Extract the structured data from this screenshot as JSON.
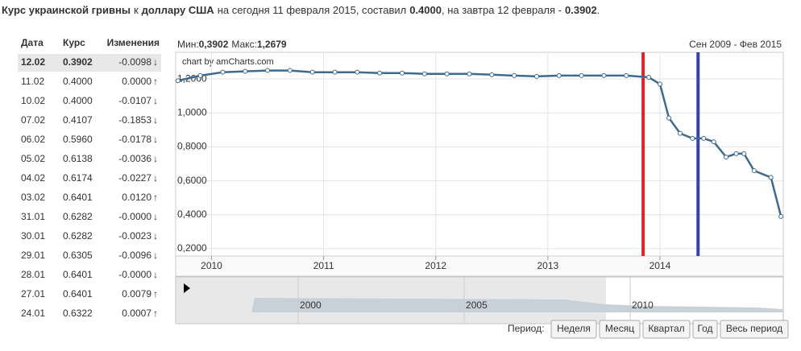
{
  "header": {
    "parts": [
      {
        "text": "Курс украинской гривны",
        "bold": true
      },
      {
        "text": "к",
        "bold": false
      },
      {
        "text": "доллару США",
        "bold": true
      },
      {
        "text": "на сегодня 11 февраля 2015, составил",
        "bold": false
      },
      {
        "text": "0.4000",
        "bold": true
      },
      {
        "text": ", на завтра 12 февраля -",
        "bold": false
      },
      {
        "text": "0.3902",
        "bold": true
      },
      {
        "text": ".",
        "bold": false
      }
    ]
  },
  "table": {
    "columns": [
      "Дата",
      "Курс",
      "Изменения"
    ],
    "rows": [
      [
        "12.02",
        "0.3902",
        "-0.0098",
        "↓"
      ],
      [
        "11.02",
        "0.4000",
        "0.0000",
        "↑"
      ],
      [
        "10.02",
        "0.4000",
        "-0.0107",
        "↓"
      ],
      [
        "07.02",
        "0.4107",
        "-0.1853",
        "↓"
      ],
      [
        "06.02",
        "0.5960",
        "-0.0178",
        "↓"
      ],
      [
        "05.02",
        "0.6138",
        "-0.0036",
        "↓"
      ],
      [
        "04.02",
        "0.6174",
        "-0.0227",
        "↓"
      ],
      [
        "03.02",
        "0.6401",
        "0.0120",
        "↑"
      ],
      [
        "31.01",
        "0.6282",
        "-0.0000",
        "↓"
      ],
      [
        "30.01",
        "0.6282",
        "-0.0023",
        "↓"
      ],
      [
        "29.01",
        "0.6305",
        "-0.0096",
        "↓"
      ],
      [
        "28.01",
        "0.6401",
        "-0.0000",
        "↓"
      ],
      [
        "27.01",
        "0.6401",
        "0.0079",
        "↑"
      ],
      [
        "24.01",
        "0.6322",
        "0.0007",
        "↑"
      ]
    ]
  },
  "chart_data": {
    "type": "line",
    "min_label": "Мин:",
    "min": "0,3902",
    "max_label": "Макс:",
    "max": "1,2679",
    "range": "Сен 2009 - Фев 2015",
    "credit": "chart by amCharts.com",
    "color": "#3e6a8e",
    "x": [
      2009.7,
      2009.9,
      2010.1,
      2010.3,
      2010.5,
      2010.7,
      2010.9,
      2011.1,
      2011.3,
      2011.5,
      2011.7,
      2011.9,
      2012.1,
      2012.3,
      2012.5,
      2012.7,
      2012.9,
      2013.1,
      2013.3,
      2013.5,
      2013.7,
      2013.9,
      2014.0,
      2014.08,
      2014.18,
      2014.29,
      2014.39,
      2014.48,
      2014.59,
      2014.68,
      2014.75,
      2014.84,
      2014.99,
      2015.08
    ],
    "values": [
      1.19,
      1.22,
      1.24,
      1.245,
      1.25,
      1.25,
      1.24,
      1.24,
      1.24,
      1.235,
      1.235,
      1.23,
      1.23,
      1.23,
      1.225,
      1.22,
      1.215,
      1.22,
      1.22,
      1.22,
      1.22,
      1.21,
      1.17,
      0.97,
      0.88,
      0.85,
      0.85,
      0.83,
      0.74,
      0.76,
      0.76,
      0.66,
      0.62,
      0.39
    ],
    "xlim": [
      2009.68,
      2015.1
    ],
    "xticks": [
      2010,
      2011,
      2012,
      2013,
      2014
    ],
    "ylim": [
      0.157,
      1.357
    ],
    "yticks": [
      {
        "value": 0.2,
        "label": "0,2000"
      },
      {
        "value": 0.4,
        "label": "0,4000"
      },
      {
        "value": 0.6,
        "label": "0,6000"
      },
      {
        "value": 0.8,
        "label": "0,8000"
      },
      {
        "value": 1.0,
        "label": "1,0000"
      },
      {
        "value": 1.2,
        "label": "1,2000"
      }
    ],
    "grid": true,
    "markers": [
      {
        "x": 2013.85,
        "color": "#d8262b"
      },
      {
        "x": 2014.34,
        "color": "#3b3fa8"
      }
    ],
    "navigator": {
      "xlim": [
        1996.31,
        2014.61
      ],
      "xticks": [
        2000,
        2005,
        2010
      ]
    }
  },
  "controls": {
    "label": "Период:",
    "buttons": [
      "Неделя",
      "Месяц",
      "Квартал",
      "Год",
      "Весь период"
    ]
  }
}
